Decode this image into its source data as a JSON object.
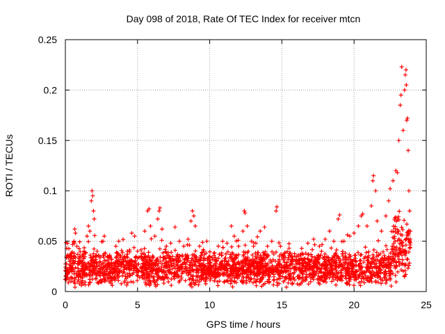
{
  "chart_data": {
    "type": "scatter",
    "title": "Day 098 of 2018, Rate Of TEC Index for receiver mtcn",
    "xlabel": "GPS time / hours",
    "ylabel": "ROTI / TECUs",
    "xlim": [
      0,
      25
    ],
    "ylim": [
      0,
      0.25
    ],
    "x_ticks": [
      0,
      5,
      10,
      15,
      20,
      25
    ],
    "x_tick_labels": [
      "0",
      "5",
      "10",
      "15",
      "20",
      "25"
    ],
    "y_ticks": [
      0,
      0.05,
      0.1,
      0.15,
      0.2,
      0.25
    ],
    "y_tick_labels": [
      "0",
      "0.05",
      "0.1",
      "0.15",
      "0.2",
      "0.25"
    ],
    "grid": true,
    "marker": "+",
    "series": [
      {
        "name": "ROTI",
        "color": "#ff0000",
        "points": [
          [
            0.1,
            0.012
          ],
          [
            0.3,
            0.03
          ],
          [
            0.4,
            0.022
          ],
          [
            0.6,
            0.05
          ],
          [
            0.65,
            0.062
          ],
          [
            0.7,
            0.058
          ],
          [
            0.8,
            0.045
          ],
          [
            1.0,
            0.035
          ],
          [
            1.1,
            0.028
          ],
          [
            1.3,
            0.04
          ],
          [
            1.5,
            0.055
          ],
          [
            1.6,
            0.065
          ],
          [
            1.7,
            0.06
          ],
          [
            1.8,
            0.09
          ],
          [
            1.85,
            0.1
          ],
          [
            1.9,
            0.095
          ],
          [
            1.95,
            0.08
          ],
          [
            2.0,
            0.072
          ],
          [
            2.2,
            0.04
          ],
          [
            2.4,
            0.03
          ],
          [
            2.6,
            0.05
          ],
          [
            2.7,
            0.055
          ],
          [
            2.9,
            0.035
          ],
          [
            3.2,
            0.032
          ],
          [
            3.5,
            0.045
          ],
          [
            3.7,
            0.05
          ],
          [
            4.0,
            0.03
          ],
          [
            4.3,
            0.04
          ],
          [
            4.6,
            0.058
          ],
          [
            4.8,
            0.055
          ],
          [
            5.0,
            0.04
          ],
          [
            5.3,
            0.038
          ],
          [
            5.5,
            0.06
          ],
          [
            5.7,
            0.08
          ],
          [
            5.8,
            0.082
          ],
          [
            5.9,
            0.065
          ],
          [
            6.2,
            0.055
          ],
          [
            6.4,
            0.072
          ],
          [
            6.5,
            0.08
          ],
          [
            6.55,
            0.083
          ],
          [
            6.7,
            0.062
          ],
          [
            7.0,
            0.045
          ],
          [
            7.3,
            0.048
          ],
          [
            7.6,
            0.064
          ],
          [
            7.9,
            0.05
          ],
          [
            8.2,
            0.045
          ],
          [
            8.5,
            0.052
          ],
          [
            8.7,
            0.07
          ],
          [
            8.8,
            0.08
          ],
          [
            8.9,
            0.075
          ],
          [
            9.0,
            0.065
          ],
          [
            9.3,
            0.045
          ],
          [
            9.6,
            0.04
          ],
          [
            9.8,
            0.05
          ],
          [
            10.0,
            0.035
          ],
          [
            10.3,
            0.038
          ],
          [
            10.6,
            0.045
          ],
          [
            10.9,
            0.05
          ],
          [
            11.2,
            0.048
          ],
          [
            11.5,
            0.065
          ],
          [
            11.7,
            0.055
          ],
          [
            12.0,
            0.045
          ],
          [
            12.3,
            0.06
          ],
          [
            12.4,
            0.08
          ],
          [
            12.45,
            0.078
          ],
          [
            12.6,
            0.065
          ],
          [
            12.9,
            0.05
          ],
          [
            13.2,
            0.048
          ],
          [
            13.5,
            0.06
          ],
          [
            13.8,
            0.064
          ],
          [
            14.0,
            0.045
          ],
          [
            14.3,
            0.05
          ],
          [
            14.6,
            0.08
          ],
          [
            14.65,
            0.084
          ],
          [
            14.9,
            0.045
          ],
          [
            15.2,
            0.038
          ],
          [
            15.6,
            0.035
          ],
          [
            16.0,
            0.032
          ],
          [
            16.4,
            0.038
          ],
          [
            16.8,
            0.048
          ],
          [
            17.2,
            0.052
          ],
          [
            17.6,
            0.045
          ],
          [
            18.0,
            0.052
          ],
          [
            18.3,
            0.06
          ],
          [
            18.6,
            0.05
          ],
          [
            18.9,
            0.072
          ],
          [
            19.0,
            0.076
          ],
          [
            19.3,
            0.05
          ],
          [
            19.7,
            0.055
          ],
          [
            20.0,
            0.058
          ],
          [
            20.3,
            0.065
          ],
          [
            20.5,
            0.075
          ],
          [
            20.6,
            0.077
          ],
          [
            20.9,
            0.065
          ],
          [
            21.2,
            0.085
          ],
          [
            21.3,
            0.11
          ],
          [
            21.35,
            0.115
          ],
          [
            21.5,
            0.1
          ],
          [
            21.6,
            0.07
          ],
          [
            21.9,
            0.06
          ],
          [
            22.2,
            0.075
          ],
          [
            22.4,
            0.09
          ],
          [
            22.5,
            0.102
          ],
          [
            22.7,
            0.11
          ],
          [
            22.9,
            0.12
          ],
          [
            23.0,
            0.118
          ],
          [
            23.1,
            0.15
          ],
          [
            23.2,
            0.185
          ],
          [
            23.25,
            0.195
          ],
          [
            23.3,
            0.223
          ],
          [
            23.4,
            0.16
          ],
          [
            23.5,
            0.2
          ],
          [
            23.55,
            0.215
          ],
          [
            23.6,
            0.22
          ],
          [
            23.62,
            0.205
          ],
          [
            23.65,
            0.17
          ],
          [
            23.7,
            0.172
          ],
          [
            23.75,
            0.14
          ],
          [
            23.8,
            0.1
          ],
          [
            23.85,
            0.08
          ],
          [
            23.9,
            0.06
          ]
        ]
      }
    ]
  }
}
